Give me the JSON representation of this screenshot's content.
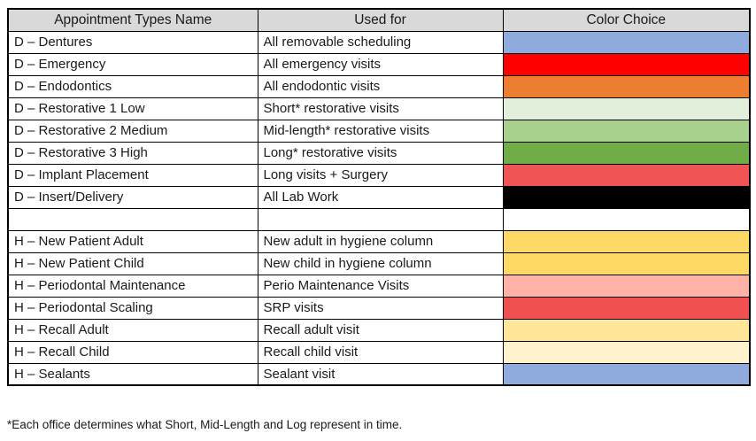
{
  "table": {
    "headers": {
      "name": "Appointment Types Name",
      "used_for": "Used for",
      "color_choice": "Color Choice"
    },
    "header_bg": "#d9d9d9",
    "border_color": "#000000",
    "rows": [
      {
        "name": "D – Dentures",
        "used_for": "All removable scheduling",
        "color": "#8FAADC",
        "color_name": "light-blue"
      },
      {
        "name": "D – Emergency",
        "used_for": "All emergency visits",
        "color": "#FF0000",
        "color_name": "red"
      },
      {
        "name": "D – Endodontics",
        "used_for": "All endodontic visits",
        "color": "#ED7D31",
        "color_name": "orange"
      },
      {
        "name": "D – Restorative 1 Low",
        "used_for": "Short* restorative visits",
        "color": "#E2EFDA",
        "color_name": "lightest-green"
      },
      {
        "name": "D – Restorative 2 Medium",
        "used_for": "Mid-length* restorative visits",
        "color": "#A9D18E",
        "color_name": "light-green"
      },
      {
        "name": "D – Restorative 3 High",
        "used_for": "Long* restorative visits",
        "color": "#70AD47",
        "color_name": "green"
      },
      {
        "name": "D – Implant Placement",
        "used_for": "Long visits + Surgery",
        "color": "#F05454",
        "color_name": "coral-red"
      },
      {
        "name": "D – Insert/Delivery",
        "used_for": "All Lab Work",
        "color": "#000000",
        "color_name": "black"
      },
      {
        "name": "",
        "used_for": "",
        "color": "#FFFFFF",
        "color_name": "white-empty"
      },
      {
        "name": "H – New Patient Adult",
        "used_for": "New adult in hygiene column",
        "color": "#FFD966",
        "color_name": "yellow"
      },
      {
        "name": "H – New Patient Child",
        "used_for": "New child in hygiene column",
        "color": "#FFD966",
        "color_name": "yellow"
      },
      {
        "name": "H – Periodontal Maintenance",
        "used_for": "Perio Maintenance Visits",
        "color": "#FFB1A5",
        "color_name": "light-salmon"
      },
      {
        "name": "H – Periodontal Scaling",
        "used_for": "SRP visits",
        "color": "#F05050",
        "color_name": "coral-red"
      },
      {
        "name": "H – Recall Adult",
        "used_for": "Recall adult visit",
        "color": "#FFE699",
        "color_name": "pale-yellow"
      },
      {
        "name": "H – Recall Child",
        "used_for": "Recall child visit",
        "color": "#FFF2CC",
        "color_name": "cream"
      },
      {
        "name": "H – Sealants",
        "used_for": "Sealant visit",
        "color": "#8FAADC",
        "color_name": "light-blue"
      }
    ]
  },
  "footnote": "*Each office determines what Short, Mid-Length and Log represent in time."
}
